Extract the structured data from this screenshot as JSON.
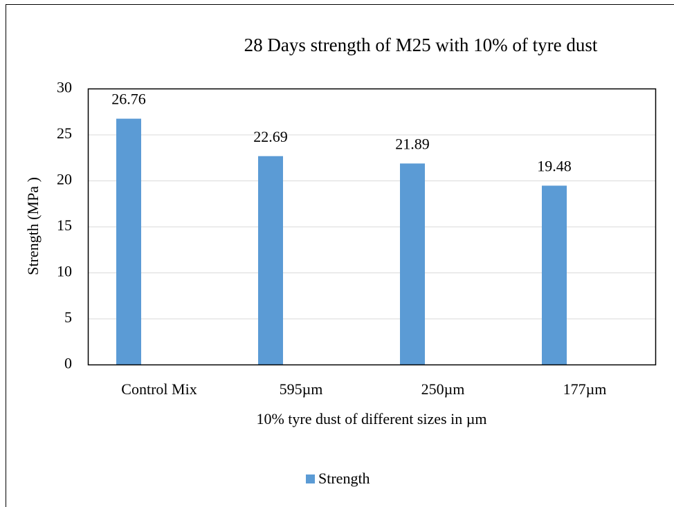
{
  "chart_data": {
    "type": "bar",
    "title": "28 Days strength of M25 with 10% of tyre dust",
    "x_label": "10% tyre dust of different sizes in µm",
    "y_label": "Strength (MPa )",
    "categories": [
      "Control Mix",
      "595µm",
      "250µm",
      "177µm"
    ],
    "series": [
      {
        "name": "Strength",
        "color": "#5b9bd5",
        "values": [
          26.76,
          22.69,
          21.89,
          19.48
        ]
      }
    ],
    "ylim": [
      0,
      30
    ],
    "yticks": [
      0,
      5,
      10,
      15,
      20,
      25,
      30
    ],
    "grid": true,
    "legend": "bottom"
  }
}
